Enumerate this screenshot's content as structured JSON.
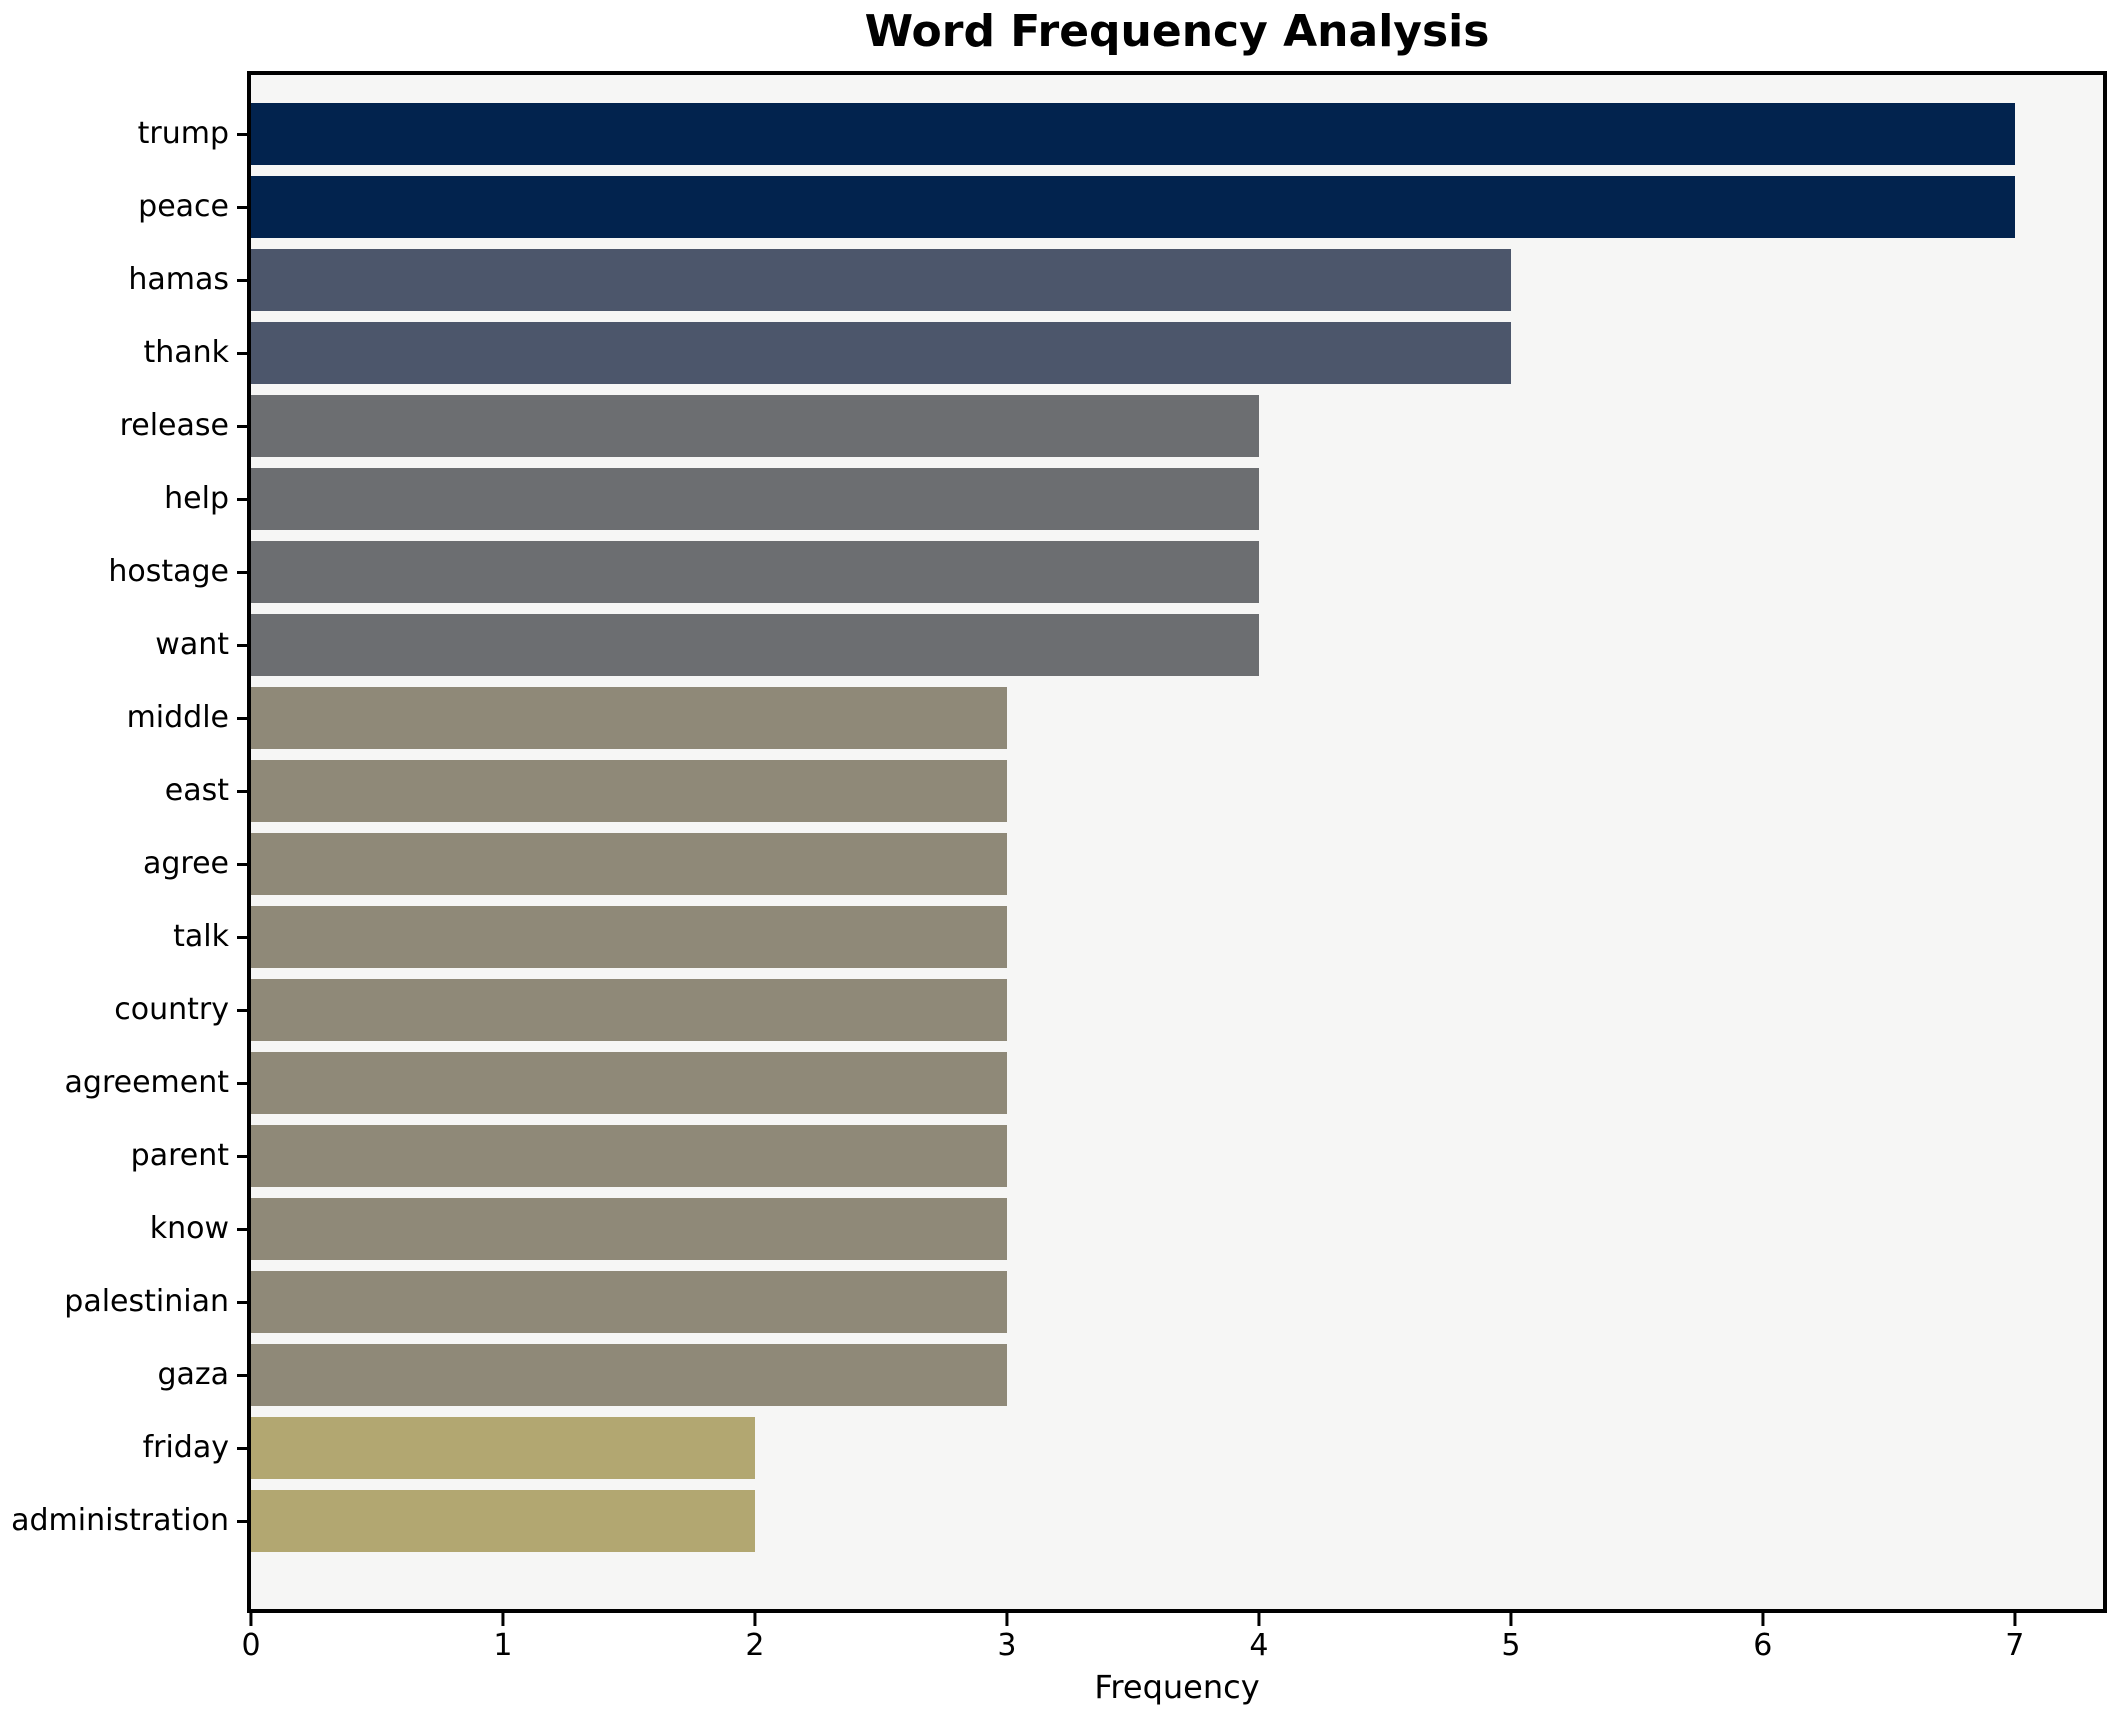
{
  "chart_data": {
    "type": "bar",
    "orientation": "horizontal",
    "title": "Word Frequency Analysis",
    "xlabel": "Frequency",
    "ylabel": "",
    "categories": [
      "trump",
      "peace",
      "hamas",
      "thank",
      "release",
      "help",
      "hostage",
      "want",
      "middle",
      "east",
      "agree",
      "talk",
      "country",
      "agreement",
      "parent",
      "know",
      "palestinian",
      "gaza",
      "friday",
      "administration"
    ],
    "values": [
      7,
      7,
      5,
      5,
      4,
      4,
      4,
      4,
      3,
      3,
      3,
      3,
      3,
      3,
      3,
      3,
      3,
      3,
      2,
      2
    ],
    "bar_colors": [
      "#02234e",
      "#02234e",
      "#4c566b",
      "#4c566b",
      "#6c6e71",
      "#6c6e71",
      "#6c6e71",
      "#6c6e71",
      "#8f8978",
      "#8f8978",
      "#8f8978",
      "#8f8978",
      "#8f8978",
      "#8f8978",
      "#8f8978",
      "#8f8978",
      "#8f8978",
      "#8f8978",
      "#b2a771",
      "#b2a771"
    ],
    "xlim": [
      0,
      7.35
    ],
    "xticks": [
      0,
      1,
      2,
      3,
      4,
      5,
      6,
      7
    ],
    "grid": false,
    "legend": "none",
    "colors": {
      "figure_background": "#ffffff",
      "plot_background": "#f6f6f5",
      "spine": "#000000",
      "text": "#000000"
    }
  }
}
